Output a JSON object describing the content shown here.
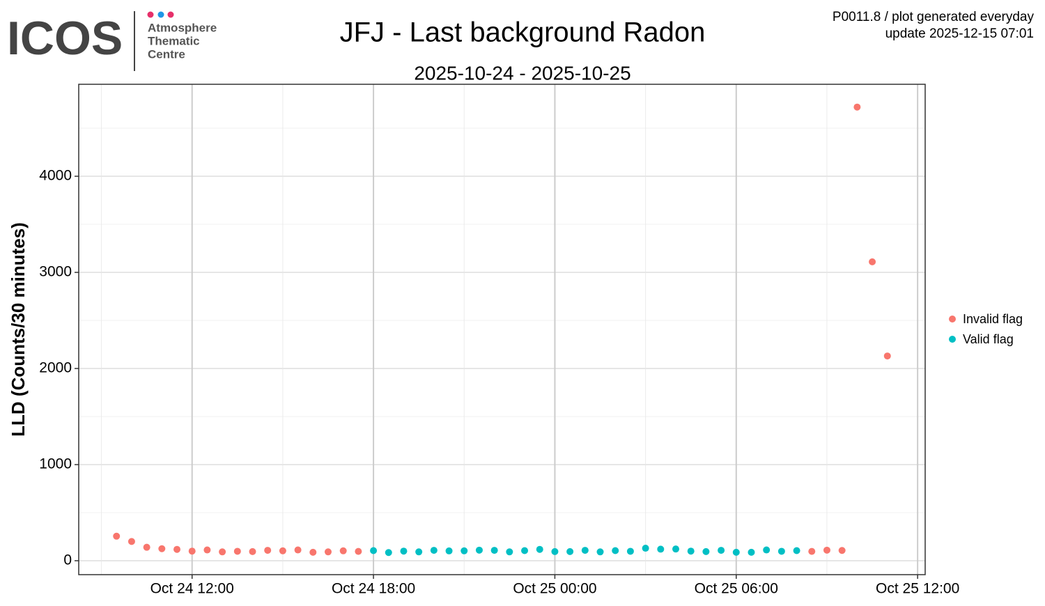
{
  "chart_data": {
    "type": "scatter",
    "title": "JFJ - Last background Radon",
    "subtitle": "2025-10-24 - 2025-10-25",
    "logo": {
      "name": "ICOS",
      "lines": [
        "Atmosphere",
        "Thematic",
        "Centre"
      ]
    },
    "note": [
      "P0011.8 / plot generated everyday",
      "update  2025-12-15 07:01"
    ],
    "y_label": "LLD (Counts/30 minutes)",
    "xlim": [
      "2025-10-24T08:15",
      "2025-10-25T12:15"
    ],
    "xticks": [
      {
        "value": "2025-10-24T12:00",
        "label": "Oct 24 12:00"
      },
      {
        "value": "2025-10-24T18:00",
        "label": "Oct 24 18:00"
      },
      {
        "value": "2025-10-25T00:00",
        "label": "Oct 25 00:00"
      },
      {
        "value": "2025-10-25T06:00",
        "label": "Oct 25 06:00"
      },
      {
        "value": "2025-10-25T12:00",
        "label": "Oct 25 12:00"
      }
    ],
    "x_minor_ticks": [
      "2025-10-24T09:00",
      "2025-10-24T15:00",
      "2025-10-24T21:00",
      "2025-10-25T03:00",
      "2025-10-25T09:00"
    ],
    "ylim": [
      -145,
      4957
    ],
    "yticks": [
      0,
      1000,
      2000,
      3000,
      4000
    ],
    "y_minor_ticks": [
      500,
      1500,
      2500,
      3500,
      4500
    ],
    "grid": true,
    "legend": "right",
    "series": [
      {
        "name": "Invalid flag",
        "color": "#F8766D",
        "x": [
          "2025-10-24T09:30",
          "2025-10-24T10:00",
          "2025-10-24T10:30",
          "2025-10-24T11:00",
          "2025-10-24T11:30",
          "2025-10-24T12:00",
          "2025-10-24T12:30",
          "2025-10-24T13:00",
          "2025-10-24T13:30",
          "2025-10-24T14:00",
          "2025-10-24T14:30",
          "2025-10-24T15:00",
          "2025-10-24T15:30",
          "2025-10-24T16:00",
          "2025-10-24T16:30",
          "2025-10-24T17:00",
          "2025-10-24T17:30",
          "2025-10-25T08:30",
          "2025-10-25T09:00",
          "2025-10-25T09:30",
          "2025-10-25T10:00",
          "2025-10-25T10:30",
          "2025-10-25T11:00"
        ],
        "values": [
          255,
          200,
          140,
          125,
          118,
          100,
          112,
          92,
          98,
          95,
          108,
          103,
          112,
          88,
          92,
          103,
          97,
          97,
          110,
          107,
          4720,
          3110,
          2130
        ]
      },
      {
        "name": "Valid flag",
        "color": "#00BFC4",
        "x": [
          "2025-10-24T18:00",
          "2025-10-24T18:30",
          "2025-10-24T19:00",
          "2025-10-24T19:30",
          "2025-10-24T20:00",
          "2025-10-24T20:30",
          "2025-10-24T21:00",
          "2025-10-24T21:30",
          "2025-10-24T22:00",
          "2025-10-24T22:30",
          "2025-10-24T23:00",
          "2025-10-24T23:30",
          "2025-10-25T00:00",
          "2025-10-25T00:30",
          "2025-10-25T01:00",
          "2025-10-25T01:30",
          "2025-10-25T02:00",
          "2025-10-25T02:30",
          "2025-10-25T03:00",
          "2025-10-25T03:30",
          "2025-10-25T04:00",
          "2025-10-25T04:30",
          "2025-10-25T05:00",
          "2025-10-25T05:30",
          "2025-10-25T06:00",
          "2025-10-25T06:30",
          "2025-10-25T07:00",
          "2025-10-25T07:30",
          "2025-10-25T08:00"
        ],
        "values": [
          105,
          85,
          100,
          92,
          108,
          102,
          103,
          110,
          108,
          92,
          105,
          118,
          95,
          95,
          108,
          92,
          105,
          98,
          130,
          120,
          122,
          100,
          95,
          108,
          88,
          88,
          112,
          98,
          105
        ]
      }
    ]
  }
}
